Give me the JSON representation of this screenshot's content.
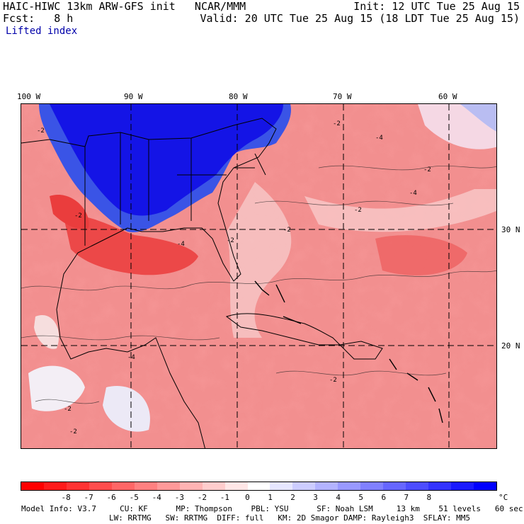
{
  "header": {
    "title": "HAIC-HIWC 13km ARW-GFS init   NCAR/MMM",
    "init": "Init: 12 UTC Tue 25 Aug 15",
    "fcst": "Fcst:   8 h",
    "valid": "Valid: 20 UTC Tue 25 Aug 15 (18 LDT Tue 25 Aug 15)",
    "field": "Lifted index"
  },
  "map": {
    "lon_labels": [
      "100 W",
      "90 W",
      "80 W",
      "70 W",
      "60 W"
    ],
    "lat_labels": [
      "30 N",
      "20 N"
    ],
    "contour_labels": [
      "-2",
      "-2",
      "-2",
      "-2",
      "-2",
      "-2",
      "-2",
      "-2",
      "-2",
      "-2",
      "-4",
      "-4",
      "-4",
      "-4"
    ],
    "colors": {
      "stable_deep": "#0000e6",
      "stable": "#3c4ee8",
      "neutral": "#f6f6fb",
      "unstable_light": "#f4a3a3",
      "unstable": "#ef6a6a",
      "unstable_strong": "#e83030"
    }
  },
  "colorbar": {
    "labels": [
      "-8",
      "-7",
      "-6",
      "-5",
      "-4",
      "-3",
      "-2",
      "-1",
      "0",
      "1",
      "2",
      "3",
      "4",
      "5",
      "6",
      "7",
      "8"
    ],
    "unit": "°C",
    "colors": [
      "#ff0000",
      "#ff1a1a",
      "#ff3333",
      "#ff4d4d",
      "#ff6666",
      "#ff8080",
      "#ff9999",
      "#ffb3b3",
      "#ffcccc",
      "#ffe6e6",
      "#ffffff",
      "#e6e6ff",
      "#ccccff",
      "#b3b3ff",
      "#9999ff",
      "#8080ff",
      "#6666ff",
      "#4d4dff",
      "#3333ff",
      "#1a1aff",
      "#0000ff"
    ]
  },
  "footer": {
    "line1": "Model Info: V3.7     CU: KF      MP: Thompson    PBL: YSU      SF: Noah LSM     13 km    51 levels   60 sec",
    "line2": "LW: RRTMG   SW: RRTMG  DIFF: full   KM: 2D Smagor DAMP: Rayleigh3  SFLAY: MM5"
  }
}
